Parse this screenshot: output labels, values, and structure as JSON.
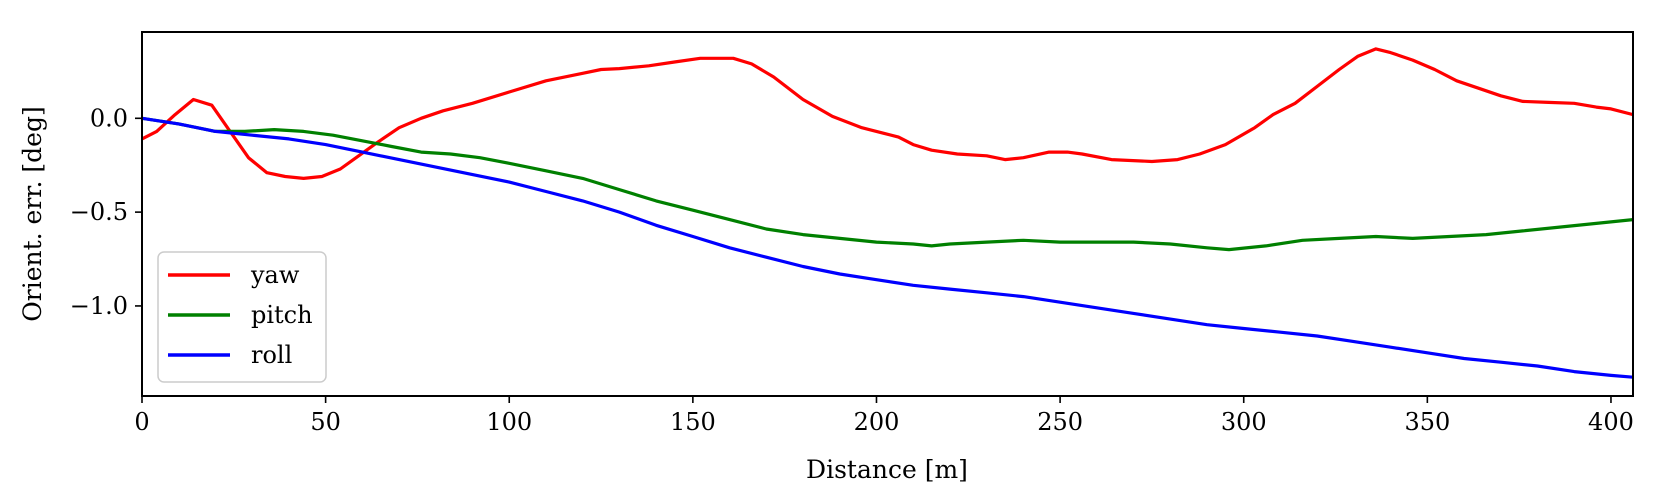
{
  "chart_data": {
    "type": "line",
    "title": "",
    "xlabel": "Distance [m]",
    "ylabel": "Orient. err. [deg]",
    "xlim": [
      0,
      406
    ],
    "ylim": [
      -1.48,
      0.46
    ],
    "grid": false,
    "legend_position": "bottom-left",
    "xticks": [
      0,
      50,
      100,
      150,
      200,
      250,
      300,
      350,
      400
    ],
    "xtick_labels": [
      "0",
      "50",
      "100",
      "150",
      "200",
      "250",
      "300",
      "350",
      "400"
    ],
    "yticks": [
      0.0,
      -0.5,
      -1.0
    ],
    "ytick_labels": [
      "0.0",
      "−0.5",
      "−1.0"
    ],
    "series": [
      {
        "name": "yaw",
        "color": "#ff0000",
        "x": [
          0,
          4,
          9,
          14,
          19,
          24,
          29,
          34,
          39,
          44,
          49,
          54,
          59,
          64,
          70,
          76,
          82,
          90,
          100,
          110,
          120,
          125,
          130,
          138,
          145,
          152,
          157,
          161,
          166,
          172,
          180,
          188,
          196,
          202,
          206,
          210,
          215,
          222,
          230,
          235,
          240,
          247,
          252,
          256,
          264,
          275,
          282,
          288,
          295,
          303,
          308,
          314,
          320,
          326,
          331,
          336,
          340,
          346,
          352,
          358,
          364,
          370,
          376,
          383,
          390,
          396,
          400,
          406
        ],
        "y": [
          -0.11,
          -0.07,
          0.02,
          0.1,
          0.07,
          -0.07,
          -0.21,
          -0.29,
          -0.31,
          -0.32,
          -0.31,
          -0.27,
          -0.2,
          -0.13,
          -0.05,
          0.0,
          0.04,
          0.08,
          0.14,
          0.2,
          0.24,
          0.26,
          0.265,
          0.28,
          0.3,
          0.32,
          0.32,
          0.32,
          0.29,
          0.22,
          0.1,
          0.01,
          -0.05,
          -0.08,
          -0.1,
          -0.14,
          -0.17,
          -0.19,
          -0.2,
          -0.22,
          -0.21,
          -0.18,
          -0.18,
          -0.19,
          -0.22,
          -0.23,
          -0.22,
          -0.19,
          -0.14,
          -0.05,
          0.02,
          0.08,
          0.17,
          0.26,
          0.33,
          0.37,
          0.35,
          0.31,
          0.26,
          0.2,
          0.16,
          0.12,
          0.09,
          0.085,
          0.08,
          0.06,
          0.05,
          0.02
        ]
      },
      {
        "name": "pitch",
        "color": "#008000",
        "x": [
          0,
          10,
          20,
          28,
          36,
          44,
          52,
          60,
          68,
          76,
          84,
          92,
          100,
          110,
          120,
          130,
          140,
          150,
          160,
          170,
          180,
          190,
          200,
          210,
          215,
          220,
          230,
          240,
          250,
          260,
          270,
          280,
          290,
          296,
          306,
          316,
          326,
          336,
          346,
          356,
          366,
          376,
          386,
          396,
          406
        ],
        "y": [
          0.0,
          -0.03,
          -0.07,
          -0.07,
          -0.06,
          -0.07,
          -0.09,
          -0.12,
          -0.15,
          -0.18,
          -0.19,
          -0.21,
          -0.24,
          -0.28,
          -0.32,
          -0.38,
          -0.44,
          -0.49,
          -0.54,
          -0.59,
          -0.62,
          -0.64,
          -0.66,
          -0.67,
          -0.68,
          -0.67,
          -0.66,
          -0.65,
          -0.66,
          -0.66,
          -0.66,
          -0.67,
          -0.69,
          -0.7,
          -0.68,
          -0.65,
          -0.64,
          -0.63,
          -0.64,
          -0.63,
          -0.62,
          -0.6,
          -0.58,
          -0.56,
          -0.54
        ]
      },
      {
        "name": "roll",
        "color": "#0000ff",
        "x": [
          0,
          10,
          20,
          30,
          40,
          50,
          60,
          70,
          80,
          90,
          100,
          110,
          120,
          130,
          140,
          150,
          160,
          170,
          180,
          190,
          200,
          210,
          220,
          230,
          240,
          250,
          260,
          270,
          280,
          290,
          300,
          310,
          320,
          330,
          340,
          350,
          360,
          370,
          380,
          390,
          400,
          406
        ],
        "y": [
          0.0,
          -0.03,
          -0.07,
          -0.09,
          -0.11,
          -0.14,
          -0.18,
          -0.22,
          -0.26,
          -0.3,
          -0.34,
          -0.39,
          -0.44,
          -0.5,
          -0.57,
          -0.63,
          -0.69,
          -0.74,
          -0.79,
          -0.83,
          -0.86,
          -0.89,
          -0.91,
          -0.93,
          -0.95,
          -0.98,
          -1.01,
          -1.04,
          -1.07,
          -1.1,
          -1.12,
          -1.14,
          -1.16,
          -1.19,
          -1.22,
          -1.25,
          -1.28,
          -1.3,
          -1.32,
          -1.35,
          -1.37,
          -1.38
        ]
      }
    ]
  }
}
